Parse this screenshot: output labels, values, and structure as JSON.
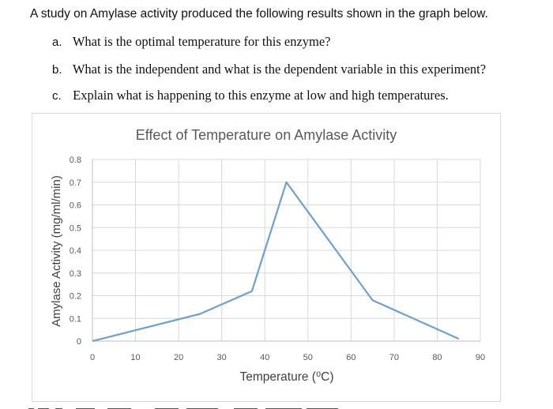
{
  "intro": "A study on Amylase activity produced the following results shown in the graph below.",
  "questions": [
    {
      "letter": "a.",
      "text": "What is the optimal temperature for this enzyme?"
    },
    {
      "letter": "b.",
      "text": "What is the independent and what is the dependent variable in this experiment?"
    },
    {
      "letter": "c.",
      "text": "Explain what is happening to this enzyme at low and high temperatures."
    }
  ],
  "chart_data": {
    "type": "line",
    "title": "Effect of Temperature on Amylase Activity",
    "xlabel": "Temperature (⁰C)",
    "ylabel": "Amylase Activity (mg/ml/min)",
    "xlim": [
      0,
      90
    ],
    "ylim": [
      0,
      0.8
    ],
    "x_ticks": [
      "0",
      "10",
      "20",
      "30",
      "40",
      "50",
      "60",
      "70",
      "80",
      "90"
    ],
    "y_ticks": [
      "0",
      "0.1",
      "0.2",
      "0.3",
      "0.4",
      "0.5",
      "0.6",
      "0.7",
      "0.8"
    ],
    "grid": true,
    "legend": "none",
    "line_color": "#6fa0cf",
    "series": [
      {
        "x": [
          0,
          25,
          37,
          45,
          65,
          85
        ],
        "y": [
          0,
          0.12,
          0.22,
          0.7,
          0.18,
          0.01
        ]
      }
    ]
  }
}
